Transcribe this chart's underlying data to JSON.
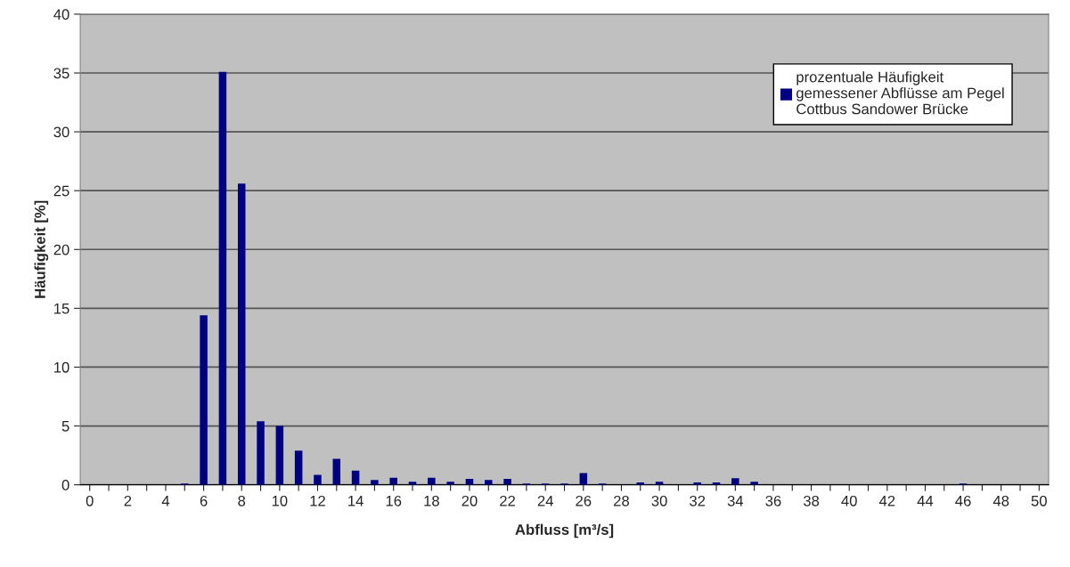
{
  "chart_data": {
    "type": "bar",
    "xlabel": "Abfluss [m³/s]",
    "ylabel": "Häufigkeit [%]",
    "categories": [
      "0",
      null,
      "2",
      null,
      "4",
      null,
      "6",
      null,
      "8",
      null,
      "10",
      null,
      "12",
      null,
      "14",
      null,
      "16",
      null,
      "18",
      null,
      "20",
      null,
      "22",
      null,
      "24",
      null,
      "26",
      null,
      "28",
      null,
      "30",
      null,
      "32",
      null,
      "34",
      null,
      "36",
      null,
      "38",
      null,
      "40",
      null,
      "42",
      null,
      "44",
      null,
      "46",
      null,
      "48",
      null,
      "50"
    ],
    "series": [
      {
        "name": "prozentuale Häufigkeit\ngemessener Abflüsse am Pegel\nCottbus Sandower Brücke",
        "color": "#000080",
        "values": [
          0,
          0,
          0,
          0,
          0,
          0.1,
          14.4,
          35.1,
          25.6,
          5.4,
          5.0,
          2.9,
          0.85,
          2.2,
          1.2,
          0.4,
          0.6,
          0.25,
          0.6,
          0.25,
          0.5,
          0.4,
          0.5,
          0.1,
          0.1,
          0.1,
          1.0,
          0.1,
          0,
          0.2,
          0.25,
          0,
          0.2,
          0.2,
          0.55,
          0.25,
          0,
          0,
          0,
          0,
          0,
          0,
          0,
          0,
          0,
          0,
          0.1,
          0,
          0,
          0,
          0
        ]
      }
    ],
    "ylim": [
      0,
      40
    ],
    "yticks": [
      0,
      5,
      10,
      15,
      20,
      25,
      30,
      35,
      40
    ],
    "grid": "y",
    "legend": "top right"
  }
}
